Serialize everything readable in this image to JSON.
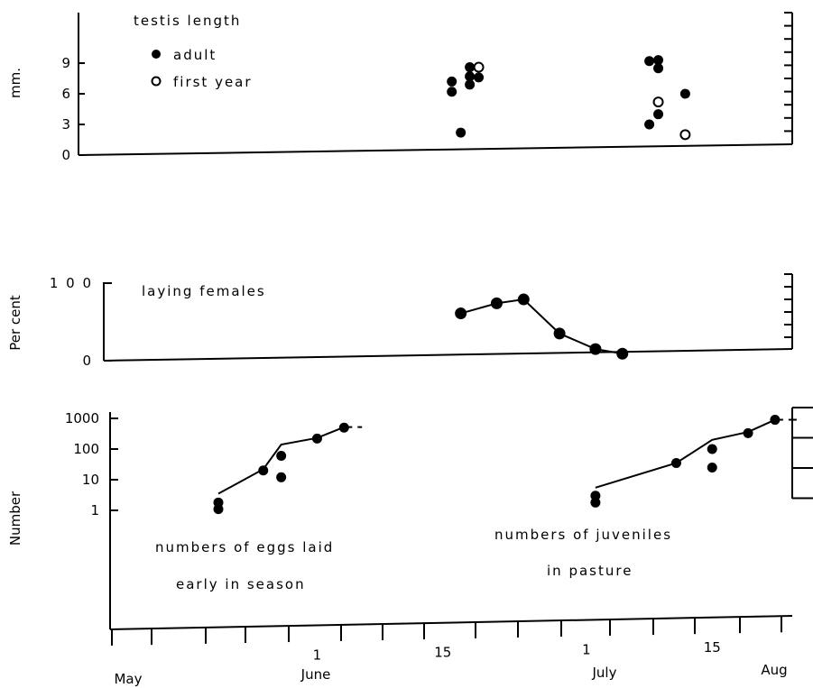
{
  "chart_data": [
    {
      "type": "scatter",
      "panel": "testis",
      "ylabel": "mm.",
      "yticks": [
        "0",
        "3",
        "6",
        "9"
      ],
      "ylim": [
        0,
        10
      ],
      "title": "testis length",
      "series": [
        {
          "name": "adult",
          "points": [
            {
              "x": "Jun 16",
              "y": 7.2
            },
            {
              "x": "Jun 16",
              "y": 6.2
            },
            {
              "x": "Jun 17",
              "y": 2.2
            },
            {
              "x": "Jun 18",
              "y": 8.6
            },
            {
              "x": "Jun 18",
              "y": 7.7
            },
            {
              "x": "Jun 18",
              "y": 6.9
            },
            {
              "x": "Jun 19",
              "y": 7.6
            },
            {
              "x": "Jul 8",
              "y": 9.2
            },
            {
              "x": "Jul 8",
              "y": 3.0
            },
            {
              "x": "Jul 9",
              "y": 9.3
            },
            {
              "x": "Jul 9",
              "y": 8.5
            },
            {
              "x": "Jul 9",
              "y": 4.0
            },
            {
              "x": "Jul 12",
              "y": 6.0
            }
          ]
        },
        {
          "name": "first year",
          "points": [
            {
              "x": "Jun 19",
              "y": 8.6
            },
            {
              "x": "Jul 9",
              "y": 5.2
            },
            {
              "x": "Jul 12",
              "y": 2.0
            }
          ]
        }
      ]
    },
    {
      "type": "line",
      "panel": "laying",
      "ylabel": "Per cent",
      "yticks": [
        "0",
        "100"
      ],
      "ylim": [
        0,
        100
      ],
      "title": "laying females",
      "series": [
        {
          "name": "laying females",
          "points": [
            {
              "x": "Jun 17",
              "y": 61
            },
            {
              "x": "Jun 21",
              "y": 74
            },
            {
              "x": "Jun 24",
              "y": 79
            },
            {
              "x": "Jun 28",
              "y": 35
            },
            {
              "x": "Jul 2",
              "y": 15
            },
            {
              "x": "Jul 5",
              "y": 9
            }
          ]
        }
      ]
    },
    {
      "type": "line",
      "panel": "numbers",
      "ylabel": "Number",
      "yticks": [
        "1",
        "10",
        "100",
        "1000"
      ],
      "yscale": "log",
      "ylim": [
        1,
        1000
      ],
      "annotations": [
        "numbers of eggs laid",
        "early in season",
        "numbers of juveniles",
        "in pasture"
      ],
      "series": [
        {
          "name": "numbers of eggs laid early in season",
          "points": [
            {
              "x": "May 21",
              "y": 1.8
            },
            {
              "x": "May 21",
              "y": 1.1
            },
            {
              "x": "May 26",
              "y": 20
            },
            {
              "x": "May 28",
              "y": 60
            },
            {
              "x": "May 28",
              "y": 12
            },
            {
              "x": "Jun 1",
              "y": 220
            },
            {
              "x": "Jun 4",
              "y": 500
            }
          ],
          "trend": [
            {
              "x": "May 21",
              "y": 3.5
            },
            {
              "x": "May 26",
              "y": 22
            },
            {
              "x": "May 28",
              "y": 140
            },
            {
              "x": "Jun 1",
              "y": 230
            },
            {
              "x": "Jun 4",
              "y": 520
            },
            {
              "x": "Jun 6",
              "y": 520
            }
          ]
        },
        {
          "name": "numbers of juveniles in pasture",
          "points": [
            {
              "x": "Jul 2",
              "y": 3.0
            },
            {
              "x": "Jul 2",
              "y": 1.8
            },
            {
              "x": "Jul 11",
              "y": 35
            },
            {
              "x": "Jul 15",
              "y": 100
            },
            {
              "x": "Jul 15",
              "y": 25
            },
            {
              "x": "Jul 19",
              "y": 330
            },
            {
              "x": "Jul 22",
              "y": 900
            }
          ],
          "trend": [
            {
              "x": "Jul 2",
              "y": 5.5
            },
            {
              "x": "Jul 11",
              "y": 35
            },
            {
              "x": "Jul 15",
              "y": 200
            },
            {
              "x": "Jul 19",
              "y": 360
            },
            {
              "x": "Jul 22",
              "y": 900
            },
            {
              "x": "Jul 25",
              "y": 900
            }
          ]
        }
      ]
    }
  ],
  "x_axis": {
    "tick_labels": [
      "1",
      "15",
      "1",
      "15",
      "1"
    ],
    "tick_dates": [
      "Jun 1",
      "Jun 15",
      "Jul 1",
      "Jul 15",
      "Aug 1"
    ],
    "month_labels": [
      "May",
      "June",
      "July",
      "Aug"
    ]
  },
  "colors": {
    "ink": "#000000",
    "paper": "#ffffff"
  }
}
